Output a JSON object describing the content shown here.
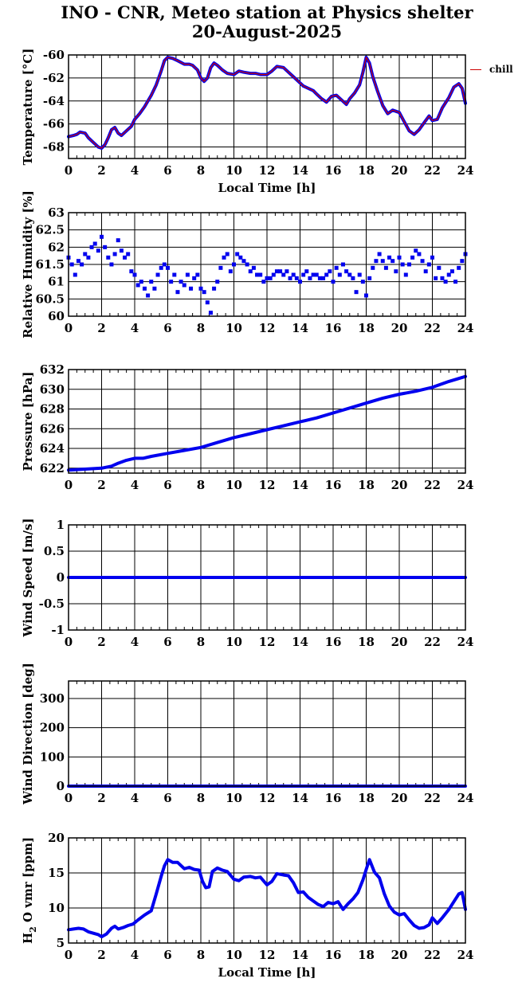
{
  "title": {
    "line1": "INO - CNR, Meteo station at Physics shelter",
    "line2": "20-August-2025"
  },
  "legend": {
    "label": "chill",
    "color": "#cc0000"
  },
  "colors": {
    "data": "#0000ee",
    "overlay": "#cc0000",
    "grid": "#000000"
  },
  "chart_data": [
    {
      "type": "line",
      "ylabel": "Temperature [°C]",
      "xlabel": "Local Time [h]",
      "xlim": [
        0,
        24
      ],
      "ylim": [
        -69,
        -60
      ],
      "xticks": [
        0,
        2,
        4,
        6,
        8,
        10,
        12,
        14,
        16,
        18,
        20,
        22,
        24
      ],
      "yticks": [
        -68,
        -66,
        -64,
        -62,
        -60
      ],
      "grid": true,
      "overlay_series": "chill",
      "series": [
        {
          "x": [
            0,
            0.3,
            0.5,
            0.7,
            1.0,
            1.2,
            1.5,
            1.8,
            2.0,
            2.2,
            2.4,
            2.6,
            2.8,
            3.0,
            3.2,
            3.5,
            3.8,
            4.0,
            4.3,
            4.6,
            5.0,
            5.3,
            5.6,
            5.8,
            6.0,
            6.3,
            6.6,
            7.0,
            7.3,
            7.5,
            7.8,
            8.0,
            8.2,
            8.4,
            8.6,
            8.8,
            9.0,
            9.3,
            9.6,
            10.0,
            10.3,
            10.6,
            11.0,
            11.3,
            11.6,
            12.0,
            12.3,
            12.6,
            13.0,
            13.3,
            13.6,
            13.9,
            14.2,
            14.5,
            14.8,
            15.0,
            15.3,
            15.6,
            15.9,
            16.2,
            16.5,
            16.8,
            17.0,
            17.3,
            17.6,
            17.8,
            18.0,
            18.2,
            18.4,
            18.7,
            19.0,
            19.3,
            19.6,
            20.0,
            20.3,
            20.6,
            20.9,
            21.2,
            21.5,
            21.8,
            22.0,
            22.3,
            22.6,
            23.0,
            23.3,
            23.6,
            23.8,
            24.0
          ],
          "values": [
            -67.1,
            -67.0,
            -66.9,
            -66.7,
            -66.8,
            -67.2,
            -67.6,
            -68.0,
            -68.1,
            -67.8,
            -67.2,
            -66.5,
            -66.3,
            -66.8,
            -67.0,
            -66.6,
            -66.2,
            -65.6,
            -65.1,
            -64.5,
            -63.5,
            -62.6,
            -61.4,
            -60.5,
            -60.2,
            -60.3,
            -60.5,
            -60.8,
            -60.8,
            -60.9,
            -61.3,
            -62.0,
            -62.3,
            -62.0,
            -61.1,
            -60.7,
            -60.9,
            -61.3,
            -61.6,
            -61.7,
            -61.4,
            -61.5,
            -61.6,
            -61.6,
            -61.7,
            -61.7,
            -61.4,
            -61.0,
            -61.1,
            -61.5,
            -61.9,
            -62.3,
            -62.7,
            -62.9,
            -63.1,
            -63.4,
            -63.8,
            -64.1,
            -63.6,
            -63.5,
            -63.9,
            -64.3,
            -63.8,
            -63.3,
            -62.6,
            -61.5,
            -60.2,
            -60.7,
            -61.9,
            -63.2,
            -64.4,
            -65.1,
            -64.8,
            -65.0,
            -65.8,
            -66.6,
            -66.9,
            -66.5,
            -65.9,
            -65.3,
            -65.7,
            -65.6,
            -64.6,
            -63.7,
            -62.8,
            -62.5,
            -62.9,
            -64.2
          ]
        }
      ]
    },
    {
      "type": "scatter",
      "ylabel": "Relative Humidity [%]",
      "xlim": [
        0,
        24
      ],
      "ylim": [
        60,
        63
      ],
      "xticks": [
        0,
        2,
        4,
        6,
        8,
        10,
        12,
        14,
        16,
        18,
        20,
        22,
        24
      ],
      "yticks": [
        60,
        60.5,
        61,
        61.5,
        62,
        62.5,
        63
      ],
      "grid": true,
      "series": [
        {
          "x": [
            0,
            0.2,
            0.4,
            0.6,
            0.8,
            1.0,
            1.2,
            1.4,
            1.6,
            1.8,
            2.0,
            2.2,
            2.4,
            2.6,
            2.8,
            3.0,
            3.2,
            3.4,
            3.6,
            3.8,
            4.0,
            4.2,
            4.4,
            4.6,
            4.8,
            5.0,
            5.2,
            5.4,
            5.6,
            5.8,
            6.0,
            6.2,
            6.4,
            6.6,
            6.8,
            7.0,
            7.2,
            7.4,
            7.6,
            7.8,
            8.0,
            8.2,
            8.4,
            8.6,
            8.8,
            9.0,
            9.2,
            9.4,
            9.6,
            9.8,
            10.0,
            10.2,
            10.4,
            10.6,
            10.8,
            11.0,
            11.2,
            11.4,
            11.6,
            11.8,
            12.0,
            12.2,
            12.4,
            12.6,
            12.8,
            13.0,
            13.2,
            13.4,
            13.6,
            13.8,
            14.0,
            14.2,
            14.4,
            14.6,
            14.8,
            15.0,
            15.2,
            15.4,
            15.6,
            15.8,
            16.0,
            16.2,
            16.4,
            16.6,
            16.8,
            17.0,
            17.2,
            17.4,
            17.6,
            17.8,
            18.0,
            18.2,
            18.4,
            18.6,
            18.8,
            19.0,
            19.2,
            19.4,
            19.6,
            19.8,
            20.0,
            20.2,
            20.4,
            20.6,
            20.8,
            21.0,
            21.2,
            21.4,
            21.6,
            21.8,
            22.0,
            22.2,
            22.4,
            22.6,
            22.8,
            23.0,
            23.2,
            23.4,
            23.6,
            23.8,
            24.0
          ],
          "values": [
            61.7,
            61.5,
            61.2,
            61.6,
            61.5,
            61.8,
            61.7,
            62.0,
            62.1,
            61.9,
            62.3,
            62.0,
            61.7,
            61.5,
            61.8,
            62.2,
            61.9,
            61.7,
            61.8,
            61.3,
            61.2,
            60.9,
            61.0,
            60.8,
            60.6,
            61.0,
            60.8,
            61.2,
            61.4,
            61.5,
            61.4,
            61.0,
            61.2,
            60.7,
            61.0,
            60.9,
            61.2,
            60.8,
            61.1,
            61.2,
            60.8,
            60.7,
            60.4,
            60.1,
            60.8,
            61.0,
            61.4,
            61.7,
            61.8,
            61.3,
            61.5,
            61.8,
            61.7,
            61.6,
            61.5,
            61.3,
            61.4,
            61.2,
            61.2,
            61.0,
            61.1,
            61.1,
            61.2,
            61.3,
            61.3,
            61.2,
            61.3,
            61.1,
            61.2,
            61.1,
            61.0,
            61.2,
            61.3,
            61.1,
            61.2,
            61.2,
            61.1,
            61.1,
            61.2,
            61.3,
            61.0,
            61.4,
            61.2,
            61.5,
            61.3,
            61.2,
            61.1,
            60.7,
            61.2,
            61.0,
            60.6,
            61.1,
            61.4,
            61.6,
            61.8,
            61.6,
            61.4,
            61.7,
            61.6,
            61.3,
            61.7,
            61.5,
            61.2,
            61.5,
            61.7,
            61.9,
            61.8,
            61.6,
            61.3,
            61.5,
            61.7,
            61.1,
            61.4,
            61.1,
            61.0,
            61.2,
            61.3,
            61.0,
            61.4,
            61.6,
            61.8
          ]
        }
      ]
    },
    {
      "type": "line",
      "ylabel": "Pressure [hPa]",
      "xlim": [
        0,
        24
      ],
      "ylim": [
        621.5,
        632
      ],
      "xticks": [
        0,
        2,
        4,
        6,
        8,
        10,
        12,
        14,
        16,
        18,
        20,
        22,
        24
      ],
      "yticks": [
        622,
        624,
        626,
        628,
        630,
        632
      ],
      "grid": true,
      "series": [
        {
          "x": [
            0,
            1,
            2,
            2.6,
            3.0,
            3.5,
            4.0,
            4.5,
            5.0,
            6.0,
            7.0,
            8.0,
            9.0,
            10.0,
            11.0,
            12.0,
            13.0,
            14.0,
            15.0,
            16.0,
            17.0,
            18.0,
            19.0,
            20.0,
            21.0,
            22.0,
            23.0,
            24.0
          ],
          "values": [
            621.8,
            621.9,
            622.0,
            622.2,
            622.5,
            622.8,
            623.0,
            623.0,
            623.2,
            623.5,
            623.8,
            624.1,
            624.6,
            625.1,
            625.5,
            625.9,
            626.3,
            626.7,
            627.1,
            627.6,
            628.1,
            628.6,
            629.1,
            629.5,
            629.8,
            630.2,
            630.8,
            631.3
          ]
        }
      ]
    },
    {
      "type": "line",
      "ylabel": "Wind Speed [m/s]",
      "xlim": [
        0,
        24
      ],
      "ylim": [
        -1,
        1
      ],
      "xticks": [
        0,
        2,
        4,
        6,
        8,
        10,
        12,
        14,
        16,
        18,
        20,
        22,
        24
      ],
      "yticks": [
        -1,
        -0.5,
        0,
        0.5,
        1
      ],
      "grid": true,
      "series": [
        {
          "x": [
            0,
            24
          ],
          "values": [
            0,
            0
          ]
        }
      ]
    },
    {
      "type": "line",
      "ylabel": "Wind Direction [deg]",
      "xlim": [
        0,
        24
      ],
      "ylim": [
        0,
        360
      ],
      "xticks": [
        0,
        2,
        4,
        6,
        8,
        10,
        12,
        14,
        16,
        18,
        20,
        22,
        24
      ],
      "yticks": [
        0,
        100,
        200,
        300
      ],
      "grid": true,
      "series": [
        {
          "x": [
            0,
            24
          ],
          "values": [
            0,
            0
          ]
        }
      ]
    },
    {
      "type": "line",
      "ylabel": "H2O vmr [ppm]",
      "xlabel": "Local Time [h]",
      "xlim": [
        0,
        24
      ],
      "ylim": [
        5,
        20
      ],
      "xticks": [
        0,
        2,
        4,
        6,
        8,
        10,
        12,
        14,
        16,
        18,
        20,
        22,
        24
      ],
      "yticks": [
        5,
        10,
        15,
        20
      ],
      "grid": true,
      "series": [
        {
          "x": [
            0,
            0.3,
            0.6,
            0.9,
            1.2,
            1.5,
            1.8,
            2.0,
            2.3,
            2.6,
            2.8,
            3.0,
            3.3,
            3.6,
            3.9,
            4.2,
            4.6,
            5.0,
            5.3,
            5.6,
            5.8,
            6.0,
            6.3,
            6.6,
            7.0,
            7.3,
            7.6,
            7.9,
            8.1,
            8.3,
            8.5,
            8.7,
            9.0,
            9.3,
            9.6,
            10.0,
            10.3,
            10.6,
            11.0,
            11.3,
            11.6,
            12.0,
            12.3,
            12.6,
            13.0,
            13.3,
            13.6,
            13.9,
            14.2,
            14.5,
            14.8,
            15.1,
            15.4,
            15.7,
            16.0,
            16.3,
            16.6,
            16.9,
            17.2,
            17.5,
            17.8,
            18.0,
            18.2,
            18.5,
            18.8,
            19.1,
            19.4,
            19.7,
            20.0,
            20.3,
            20.6,
            20.9,
            21.2,
            21.5,
            21.8,
            22.0,
            22.3,
            22.6,
            23.0,
            23.3,
            23.6,
            23.8,
            24.0
          ],
          "values": [
            6.9,
            7.0,
            7.1,
            7.0,
            6.6,
            6.4,
            6.2,
            5.9,
            6.3,
            7.1,
            7.4,
            7.0,
            7.2,
            7.5,
            7.7,
            8.3,
            9.0,
            9.6,
            12.0,
            14.5,
            16.0,
            16.9,
            16.5,
            16.5,
            15.6,
            15.8,
            15.5,
            15.4,
            13.8,
            12.9,
            13.0,
            15.2,
            15.7,
            15.4,
            15.2,
            14.1,
            13.9,
            14.4,
            14.5,
            14.3,
            14.4,
            13.3,
            13.8,
            14.9,
            14.7,
            14.6,
            13.6,
            12.2,
            12.3,
            11.5,
            11.0,
            10.5,
            10.2,
            10.8,
            10.6,
            10.9,
            9.8,
            10.6,
            11.3,
            12.2,
            14.0,
            15.5,
            16.9,
            15.1,
            14.3,
            12.0,
            10.3,
            9.4,
            9.0,
            9.2,
            8.3,
            7.5,
            7.1,
            7.2,
            7.6,
            8.6,
            7.8,
            8.6,
            9.8,
            10.9,
            12.0,
            12.2,
            9.8
          ]
        }
      ]
    }
  ]
}
